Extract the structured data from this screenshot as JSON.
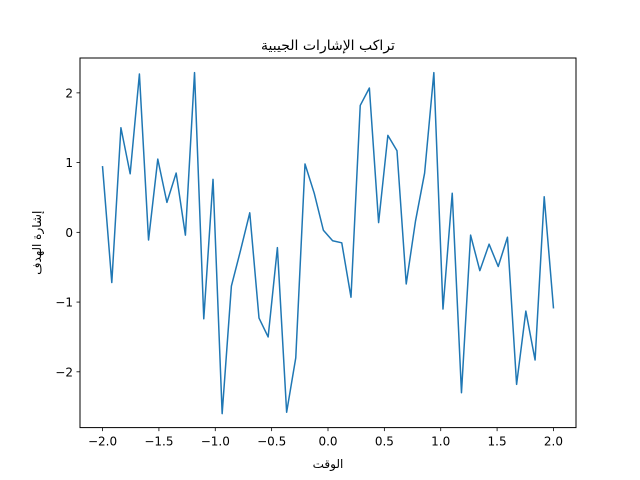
{
  "chart_data": {
    "type": "line",
    "title": "تراكب الإشارات الجيبية",
    "xlabel": "الوقت",
    "ylabel": "إشارة الهدف",
    "xlim": [
      -2.2,
      2.2
    ],
    "ylim": [
      -2.8,
      2.5
    ],
    "grid": false,
    "line_color": "#1f77b4",
    "x_ticks": [
      -2.0,
      -1.5,
      -1.0,
      -0.5,
      0.0,
      0.5,
      1.0,
      1.5,
      2.0
    ],
    "x_tick_labels": [
      "−2.0",
      "−1.5",
      "−1.0",
      "−0.5",
      "0.0",
      "0.5",
      "1.0",
      "1.5",
      "2.0"
    ],
    "y_ticks": [
      -2,
      -1,
      0,
      1,
      2
    ],
    "y_tick_labels": [
      "−2",
      "−1",
      "0",
      "1",
      "2"
    ],
    "series": [
      {
        "x": [
          -2.0,
          -1.918,
          -1.837,
          -1.755,
          -1.673,
          -1.592,
          -1.51,
          -1.429,
          -1.347,
          -1.265,
          -1.184,
          -1.102,
          -1.02,
          -0.939,
          -0.857,
          -0.776,
          -0.694,
          -0.612,
          -0.531,
          -0.449,
          -0.367,
          -0.286,
          -0.204,
          -0.122,
          -0.041,
          0.041,
          0.122,
          0.204,
          0.286,
          0.367,
          0.449,
          0.531,
          0.612,
          0.694,
          0.776,
          0.857,
          0.939,
          1.02,
          1.102,
          1.184,
          1.265,
          1.347,
          1.429,
          1.51,
          1.592,
          1.673,
          1.755,
          1.837,
          1.918,
          2.0
        ],
        "y": [
          0.94,
          -0.72,
          1.5,
          0.84,
          2.27,
          -0.11,
          1.05,
          0.43,
          0.85,
          -0.04,
          2.29,
          -1.24,
          0.76,
          -2.6,
          -0.77,
          -0.26,
          0.28,
          -1.23,
          -1.5,
          -0.22,
          -2.58,
          -1.8,
          0.98,
          0.56,
          0.03,
          -0.12,
          -0.15,
          -0.93,
          1.82,
          2.07,
          0.14,
          1.39,
          1.17,
          -0.74,
          0.16,
          0.85,
          2.29,
          -1.1,
          0.56,
          -2.3,
          -0.04,
          -0.55,
          -0.17,
          -0.49,
          -0.07,
          -2.18,
          -1.13,
          -1.83,
          0.51,
          -1.08
        ]
      }
    ]
  }
}
